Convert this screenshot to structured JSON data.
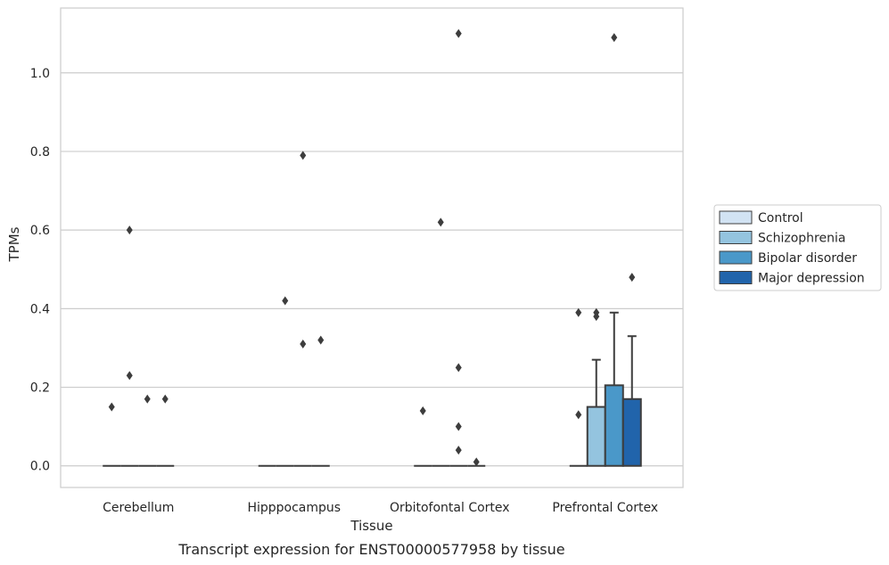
{
  "chart_data": {
    "type": "bar",
    "title": "",
    "caption": "Transcript expression for ENST00000577958 by tissue",
    "xlabel": "Tissue",
    "ylabel": "TPMs",
    "ylim": [
      -0.055,
      1.165
    ],
    "yticks": [
      0.0,
      0.2,
      0.4,
      0.6,
      0.8,
      1.0
    ],
    "ytick_labels": [
      "0.0",
      "0.2",
      "0.4",
      "0.6",
      "0.8",
      "1.0"
    ],
    "grid": "horizontal",
    "legend_position": "right",
    "categories": [
      "Cerebellum",
      "Hipppocampus",
      "Orbitofontal Cortex",
      "Prefrontal Cortex"
    ],
    "series": [
      {
        "name": "Control",
        "color": "#d2e3f3",
        "values": [
          0.0,
          0.0,
          0.0,
          0.0
        ],
        "whisker_high": [
          null,
          null,
          null,
          null
        ],
        "outliers": [
          [
            0.15
          ],
          [],
          [
            0.14
          ],
          [
            0.13,
            0.39
          ]
        ]
      },
      {
        "name": "Schizophrenia",
        "color": "#94c4df",
        "values": [
          0.0,
          0.0,
          0.0,
          0.15
        ],
        "whisker_high": [
          null,
          null,
          null,
          0.27
        ],
        "outliers": [
          [
            0.23,
            0.6
          ],
          [
            0.42
          ],
          [
            0.62
          ],
          [
            0.38,
            0.39
          ]
        ]
      },
      {
        "name": "Bipolar disorder",
        "color": "#4a98c9",
        "values": [
          0.0,
          0.0,
          0.0,
          0.205
        ],
        "whisker_high": [
          null,
          null,
          null,
          0.39
        ],
        "outliers": [
          [
            0.17
          ],
          [
            0.31,
            0.79
          ],
          [
            0.04,
            0.1,
            0.25,
            1.1
          ],
          [
            1.09
          ]
        ]
      },
      {
        "name": "Major depression",
        "color": "#2164ab",
        "values": [
          0.0,
          0.0,
          0.0,
          0.17
        ],
        "whisker_high": [
          null,
          null,
          null,
          0.33
        ],
        "outliers": [
          [
            0.17
          ],
          [
            0.32
          ],
          [
            0.01
          ],
          [
            0.48
          ]
        ]
      }
    ]
  }
}
